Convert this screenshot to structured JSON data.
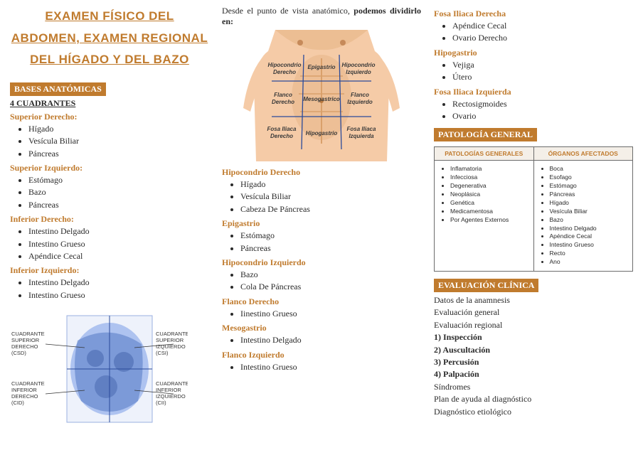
{
  "title": "EXAMEN FÍSICO DEL ABDOMEN, EXAMEN REGIONAL DEL HÍGADO Y DEL BAZO",
  "colors": {
    "accent": "#c07b2e",
    "text": "#2a2a2a",
    "skin": "#f5cba7",
    "skin_dark": "#e8b88a",
    "muscle": "#d9a06b",
    "table_border": "#6b6b6b",
    "table_head_bg": "#f4efe8",
    "organ": "#5a7fc8"
  },
  "col1": {
    "section1": "BASES ANATÓMICAS",
    "sub": "4 CUADRANTES",
    "groups": [
      {
        "head": "Superior Derecho:",
        "items": [
          "Hígado",
          "Vesícula Biliar",
          "Páncreas"
        ]
      },
      {
        "head": "Superior Izquierdo:",
        "items": [
          "Estómago",
          "Bazo",
          "Páncreas"
        ]
      },
      {
        "head": "Inferior Derecho:",
        "items": [
          "Intestino Delgado",
          "Intestino Grueso",
          "Apéndice Cecal"
        ]
      },
      {
        "head": "Inferior Izquierdo:",
        "items": [
          "Intestino Delgado",
          "Intestino Grueso"
        ]
      }
    ],
    "fig_labels": {
      "csd1": "CUADRANTE",
      "csd2": "SUPERIOR",
      "csd3": "DERECHO",
      "csd4": "(CSD)",
      "csi1": "CUADRANTE",
      "csi2": "SUPERIOR",
      "csi3": "IZQUIERDO",
      "csi4": "(CSI)",
      "cid1": "CUADRANTE",
      "cid2": "INFERIOR",
      "cid3": "DERECHO",
      "cid4": "(CID)",
      "cii1": "CUADRANTE",
      "cii2": "INFERIOR",
      "cii3": "IZQUIERDO",
      "cii4": "(CII)"
    }
  },
  "col2": {
    "intro_a": "Desde el punto de vista anatómico, ",
    "intro_b": "podemos dividirlo en:",
    "regions": {
      "r1a": "Hipocondrio",
      "r1b": "Derecho",
      "r2": "Epigastrio",
      "r3a": "Hipocondrio",
      "r3b": "Izquierdo",
      "r4a": "Flanco",
      "r4b": "Derecho",
      "r5": "Mesogastrico",
      "r6a": "Flanco",
      "r6b": "Izquierdo",
      "r7a": "Fosa Iliaca",
      "r7b": "Derecho",
      "r8": "Hipogastrio",
      "r9a": "Fosa Iliaca",
      "r9b": "Izquierda"
    },
    "groups": [
      {
        "head": "Hipocondrio Derecho",
        "items": [
          "Hígado",
          "Vesícula Biliar",
          "Cabeza De Páncreas"
        ]
      },
      {
        "head": "Epigastrio",
        "items": [
          "Estómago",
          "Páncreas"
        ]
      },
      {
        "head": "Hipocondrio Izquierdo",
        "items": [
          "Bazo",
          "Cola De Páncreas"
        ]
      },
      {
        "head": "Flanco Derecho",
        "items": [
          "Iinestino Grueso"
        ]
      },
      {
        "head": "Mesogastrio",
        "items": [
          "Intestino Delgado"
        ]
      },
      {
        "head": "Flanco Izquierdo",
        "items": [
          "Intestino Grueso"
        ]
      }
    ]
  },
  "col3": {
    "top_groups": [
      {
        "head": "Fosa Iliaca Derecha",
        "items": [
          "Apéndice Cecal",
          "Ovario Derecho"
        ]
      },
      {
        "head": "Hipogastrio",
        "items": [
          "Vejiga",
          "Útero"
        ]
      },
      {
        "head": "Fosa Iliaca Izquierda",
        "items": [
          "Rectosigmoides",
          "Ovario"
        ]
      }
    ],
    "section2": "PATOLOGÍA GENERAL",
    "table": {
      "col1_head": "PATOLOGÍAS GENERALES",
      "col2_head": "ÓRGANOS AFECTADOS",
      "col1": [
        "Inflamatoria",
        "Infecciosa",
        "Degenerativa",
        "Neoplásica",
        "Genética",
        "Medicamentosa",
        "Por  Agentes Externos"
      ],
      "col2": [
        "Boca",
        "Esofago",
        "Estómago",
        "Páncreas",
        "Hígado",
        "Vesícula Biliar",
        "Bazo",
        "Intestino Delgado",
        "Apéndice Cecal",
        "Intestino Grueso",
        "Recto",
        "Ano"
      ]
    },
    "section3": "EVALUACIÓN CLÍNICA",
    "eval": [
      {
        "text": "Datos de la anamnesis",
        "bold": false
      },
      {
        "text": "Evaluación general",
        "bold": false
      },
      {
        "text": "Evaluación regional",
        "bold": false
      },
      {
        "text": "1)  Inspección",
        "bold": true
      },
      {
        "text": "2)  Auscultación",
        "bold": true
      },
      {
        "text": "3)  Percusión",
        "bold": true
      },
      {
        "text": "4)  Palpación",
        "bold": true
      },
      {
        "text": "Síndromes",
        "bold": false
      },
      {
        "text": "Plan de ayuda al diagnóstico",
        "bold": false
      },
      {
        "text": "Diagnóstico etiológico",
        "bold": false
      }
    ]
  }
}
